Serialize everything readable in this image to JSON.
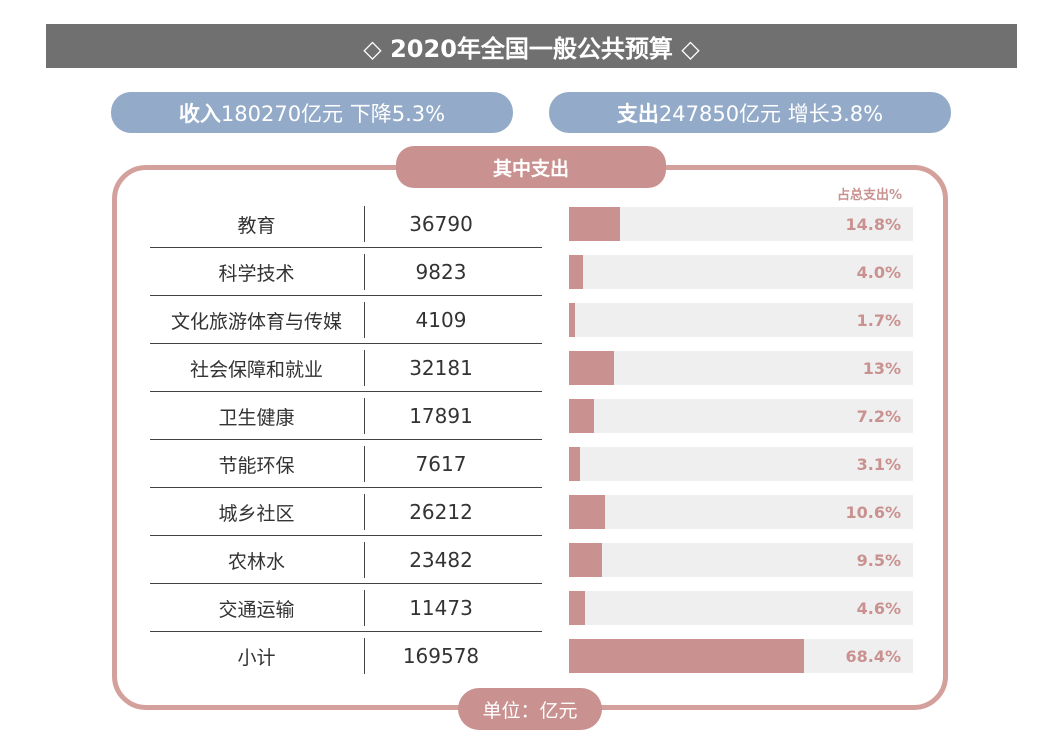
{
  "title": "◇ 2020年全国一般公共预算 ◇",
  "income": {
    "label": "收入",
    "text": "180270亿元  下降5.3%"
  },
  "expense": {
    "label": "支出",
    "text": "247850亿元  增长3.8%"
  },
  "section_tab": "其中支出",
  "unit": "单位：亿元",
  "colors": {
    "header": "#707070",
    "pill": "#93abc8",
    "accent": "#c99290",
    "track": "#efefef"
  },
  "chart_data": {
    "type": "bar",
    "orientation": "horizontal",
    "ylabel": "占总支出%",
    "xlim": [
      0,
      100
    ],
    "categories": [
      "教育",
      "科学技术",
      "文化旅游体育与传媒",
      "社会保障和就业",
      "卫生健康",
      "节能环保",
      "城乡社区",
      "农林水",
      "交通运输",
      "小计"
    ],
    "amounts": [
      "36790",
      "9823",
      "4109",
      "32181",
      "17891",
      "7617",
      "26212",
      "23482",
      "11473",
      "169578"
    ],
    "values": [
      14.8,
      4.0,
      1.7,
      13,
      7.2,
      3.1,
      10.6,
      9.5,
      4.6,
      68.4
    ],
    "labels": [
      "14.8%",
      "4.0%",
      "1.7%",
      "13%",
      "7.2%",
      "3.1%",
      "10.6%",
      "9.5%",
      "4.6%",
      "68.4%"
    ]
  }
}
